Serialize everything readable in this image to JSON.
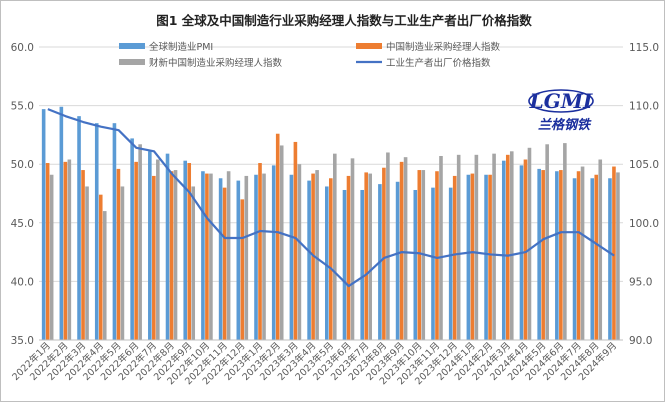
{
  "colors": {
    "global_pmi": "#5b9bd5",
    "china_pmi": "#ed7d31",
    "caixin_pmi": "#a5a5a5",
    "ppi": "#4472c4",
    "grid": "#d9d9d9",
    "logo": "#1b2f9e"
  },
  "logo": {
    "text": "LGMI",
    "subtitle": "兰格钢铁"
  },
  "chart_data": {
    "type": "bar",
    "title": "图1  全球及中国制造行业采购经理人指数与工业生产者出厂价格指数",
    "categories": [
      "2022年1月",
      "2022年2月",
      "2022年3月",
      "2022年4月",
      "2022年5月",
      "2022年6月",
      "2022年7月",
      "2022年8月",
      "2022年9月",
      "2022年10月",
      "2022年11月",
      "2022年12月",
      "2023年1月",
      "2023年2月",
      "2023年3月",
      "2023年4月",
      "2023年5月",
      "2023年6月",
      "2023年7月",
      "2023年8月",
      "2023年9月",
      "2023年10月",
      "2023年11月",
      "2023年12月",
      "2024年1月",
      "2024年2月",
      "2024年3月",
      "2024年4月",
      "2024年5月",
      "2024年6月",
      "2024年7月",
      "2024年8月",
      "2024年9月"
    ],
    "y_left": {
      "min": 35,
      "max": 60,
      "step": 5,
      "ticks": [
        "35.0",
        "40.0",
        "45.0",
        "50.0",
        "55.0",
        "60.0"
      ]
    },
    "y_right": {
      "min": 90,
      "max": 115,
      "step": 5,
      "ticks": [
        "90.0",
        "95.0",
        "100.0",
        "105.0",
        "110.0",
        "115.0"
      ]
    },
    "grid": true,
    "legend_position": "top",
    "series": [
      {
        "name": "全球制造业PMI",
        "type": "bar",
        "axis": "left",
        "values": [
          54.7,
          54.9,
          54.1,
          53.5,
          53.5,
          52.2,
          51.1,
          50.9,
          50.3,
          49.4,
          48.8,
          48.6,
          49.1,
          49.9,
          49.1,
          48.6,
          48.1,
          47.8,
          47.8,
          48.3,
          48.5,
          47.8,
          48.0,
          48.0,
          49.1,
          49.1,
          50.3,
          49.9,
          49.6,
          49.4,
          48.8,
          48.8,
          48.8
        ]
      },
      {
        "name": "中国制造业采购经理人指数",
        "type": "bar",
        "axis": "left",
        "values": [
          50.1,
          50.2,
          49.5,
          47.4,
          49.6,
          50.2,
          49.0,
          49.4,
          50.1,
          49.2,
          48.0,
          47.0,
          50.1,
          52.6,
          51.9,
          49.2,
          48.8,
          49.0,
          49.3,
          49.7,
          50.2,
          49.5,
          49.4,
          49.0,
          49.2,
          49.1,
          50.8,
          50.4,
          49.5,
          49.5,
          49.4,
          49.1,
          49.8
        ]
      },
      {
        "name": "财新中国制造业采购经理人指数",
        "type": "bar",
        "axis": "left",
        "values": [
          49.1,
          50.4,
          48.1,
          46.0,
          48.1,
          51.7,
          50.4,
          49.5,
          48.1,
          49.2,
          49.4,
          49.0,
          49.2,
          51.6,
          50.0,
          49.5,
          50.9,
          50.5,
          49.2,
          51.0,
          50.6,
          49.5,
          50.7,
          50.8,
          50.8,
          50.9,
          51.1,
          51.4,
          51.7,
          51.8,
          49.8,
          50.4,
          49.3
        ]
      },
      {
        "name": "工业生产者出厂价格指数",
        "type": "line",
        "axis": "right",
        "values": [
          109.7,
          109.1,
          108.6,
          108.2,
          107.9,
          106.4,
          106.1,
          104.2,
          102.6,
          100.4,
          98.7,
          98.7,
          99.3,
          99.2,
          98.7,
          97.2,
          96.1,
          94.6,
          95.6,
          97.0,
          97.5,
          97.4,
          97.0,
          97.3,
          97.5,
          97.3,
          97.2,
          97.5,
          98.6,
          99.2,
          99.2,
          98.2,
          97.2
        ]
      }
    ]
  }
}
